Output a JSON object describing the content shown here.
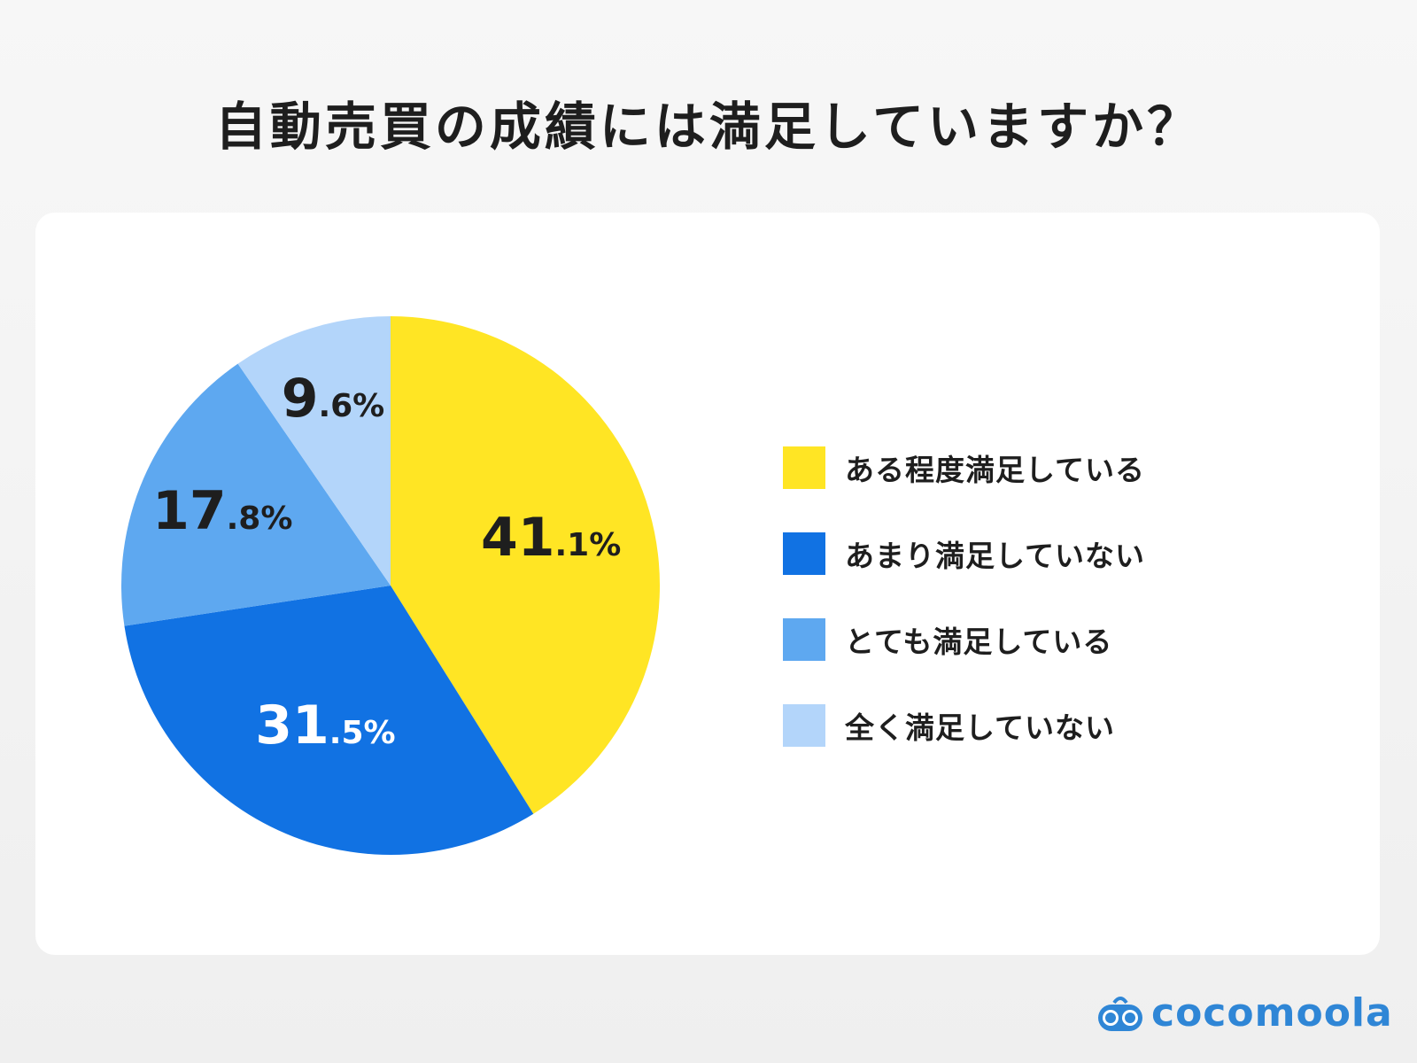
{
  "title": "自動売買の成績には満足していますか？",
  "chart_data": {
    "type": "pie",
    "title": "自動売買の成績には満足していますか？",
    "slices": [
      {
        "name": "ある程度満足している",
        "value": 41.1,
        "label": "41.1%",
        "color": "#FFE524",
        "label_color": "#1e1e1e"
      },
      {
        "name": "あまり満足していない",
        "value": 31.5,
        "label": "31.5%",
        "color": "#1172E3",
        "label_color": "#ffffff"
      },
      {
        "name": "とても満足している",
        "value": 17.8,
        "label": "17.8%",
        "color": "#5EA8F0",
        "label_color": "#1e1e1e"
      },
      {
        "name": "全く満足していない",
        "value": 9.6,
        "label": "9.6%",
        "color": "#B3D5FA",
        "label_color": "#1e1e1e"
      }
    ],
    "start_angle": "12 o'clock",
    "direction": "clockwise",
    "legend_position": "right"
  },
  "logo": {
    "text": "cocomoola",
    "color": "#2f86d6"
  }
}
